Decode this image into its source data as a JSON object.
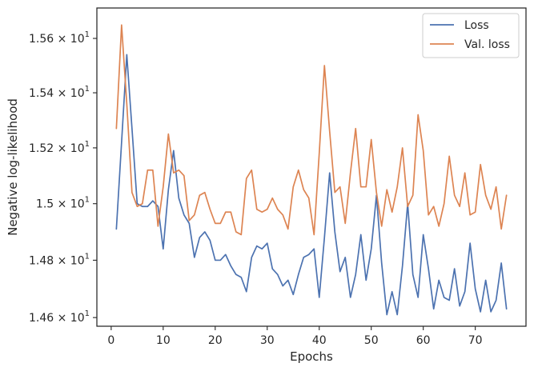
{
  "chart_data": {
    "type": "line",
    "xlabel": "Epochs",
    "ylabel": "Negative log-likelihood",
    "xlim": [
      -2.75,
      79.75
    ],
    "ylim": [
      14.57,
      15.713
    ],
    "yscale": "log",
    "grid": false,
    "legend_position": "top-right",
    "x_ticks": [
      0,
      10,
      20,
      30,
      40,
      50,
      60,
      70
    ],
    "x_tick_labels": [
      "0",
      "10",
      "20",
      "30",
      "40",
      "50",
      "60",
      "70"
    ],
    "y_ticks": [
      14.6,
      14.8,
      15.0,
      15.2,
      15.4,
      15.6
    ],
    "y_tick_labels": [
      {
        "mantissa": "1.46",
        "base": "10",
        "exp": "1"
      },
      {
        "mantissa": "1.48",
        "base": "10",
        "exp": "1"
      },
      {
        "mantissa": "1.5",
        "base": "10",
        "exp": "1"
      },
      {
        "mantissa": "1.52",
        "base": "10",
        "exp": "1"
      },
      {
        "mantissa": "1.54",
        "base": "10",
        "exp": "1"
      },
      {
        "mantissa": "1.56",
        "base": "10",
        "exp": "1"
      }
    ],
    "x": [
      1,
      2,
      3,
      4,
      5,
      6,
      7,
      8,
      9,
      10,
      11,
      12,
      13,
      14,
      15,
      16,
      17,
      18,
      19,
      20,
      21,
      22,
      23,
      24,
      25,
      26,
      27,
      28,
      29,
      30,
      31,
      32,
      33,
      34,
      35,
      36,
      37,
      38,
      39,
      40,
      41,
      42,
      43,
      44,
      45,
      46,
      47,
      48,
      49,
      50,
      51,
      52,
      53,
      54,
      55,
      56,
      57,
      58,
      59,
      60,
      61,
      62,
      63,
      64,
      65,
      66,
      67,
      68,
      69,
      70,
      71,
      72,
      73,
      74,
      75,
      76
    ],
    "series": [
      {
        "name": "Loss",
        "color": "#4c72b0",
        "values": [
          14.91,
          15.22,
          15.54,
          15.27,
          15.0,
          14.99,
          14.99,
          15.01,
          14.99,
          14.84,
          15.05,
          15.19,
          15.02,
          14.96,
          14.93,
          14.81,
          14.88,
          14.9,
          14.87,
          14.8,
          14.8,
          14.82,
          14.78,
          14.75,
          14.74,
          14.69,
          14.81,
          14.85,
          14.84,
          14.86,
          14.77,
          14.75,
          14.71,
          14.73,
          14.68,
          14.75,
          14.81,
          14.82,
          14.84,
          14.67,
          14.88,
          15.11,
          14.9,
          14.76,
          14.81,
          14.67,
          14.75,
          14.89,
          14.73,
          14.84,
          15.03,
          14.79,
          14.61,
          14.69,
          14.61,
          14.78,
          15.0,
          14.75,
          14.67,
          14.89,
          14.77,
          14.63,
          14.73,
          14.67,
          14.66,
          14.77,
          14.64,
          14.69,
          14.86,
          14.7,
          14.62,
          14.73,
          14.62,
          14.66,
          14.79,
          14.63
        ]
      },
      {
        "name": "Val. loss",
        "color": "#dd8452",
        "values": [
          15.27,
          15.65,
          15.36,
          15.04,
          14.99,
          15.0,
          15.12,
          15.12,
          14.92,
          15.06,
          15.25,
          15.11,
          15.12,
          15.1,
          14.94,
          14.96,
          15.03,
          15.04,
          14.98,
          14.93,
          14.93,
          14.97,
          14.97,
          14.9,
          14.89,
          15.09,
          15.12,
          14.98,
          14.97,
          14.98,
          15.02,
          14.98,
          14.96,
          14.91,
          15.06,
          15.12,
          15.05,
          15.02,
          14.89,
          15.18,
          15.5,
          15.26,
          15.04,
          15.06,
          14.93,
          15.11,
          15.27,
          15.06,
          15.06,
          15.23,
          15.04,
          14.92,
          15.05,
          14.97,
          15.06,
          15.2,
          14.99,
          15.03,
          15.32,
          15.19,
          14.96,
          14.99,
          14.92,
          15.0,
          15.17,
          15.03,
          14.99,
          15.11,
          14.96,
          14.97,
          15.14,
          15.03,
          14.98,
          15.06,
          14.91,
          15.03
        ]
      }
    ]
  }
}
